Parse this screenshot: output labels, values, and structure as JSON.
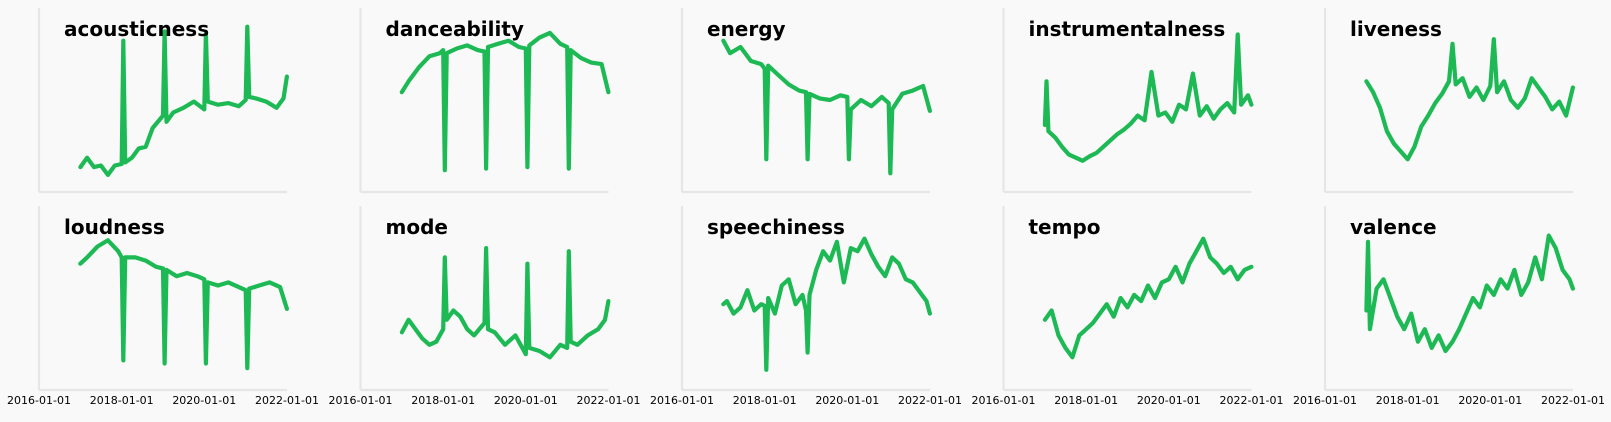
{
  "colors": {
    "line": "#1DB954",
    "background": "#f9f9f9",
    "axis": "#e6e6e6",
    "title": "#000000"
  },
  "chart_data": {
    "type": "line",
    "layout": "small-multiples 2x5",
    "x_ticks": [
      "2016-01-01",
      "2018-01-01",
      "2020-01-01",
      "2022-01-01"
    ],
    "xlim": [
      "2016-01-01",
      "2022-01-01"
    ],
    "grid": false,
    "legend": "none",
    "panels": [
      {
        "title": "acousticness",
        "x": [
          "2017-01-01",
          "2017-03-01",
          "2017-05-01",
          "2017-07-01",
          "2017-09-01",
          "2017-11-01",
          "2018-01-01",
          "2018-01-15",
          "2018-02-01",
          "2018-04-01",
          "2018-06-01",
          "2018-08-01",
          "2018-10-01",
          "2019-01-01",
          "2019-01-15",
          "2019-02-01",
          "2019-04-01",
          "2019-07-01",
          "2019-10-01",
          "2020-01-01",
          "2020-01-15",
          "2020-02-01",
          "2020-05-01",
          "2020-08-01",
          "2020-11-01",
          "2021-01-01",
          "2021-01-15",
          "2021-02-01",
          "2021-04-01",
          "2021-07-01",
          "2021-10-01",
          "2021-12-01",
          "2021-12-31"
        ],
        "y": [
          0.07,
          0.13,
          0.07,
          0.08,
          0.02,
          0.08,
          0.09,
          0.88,
          0.1,
          0.13,
          0.19,
          0.2,
          0.32,
          0.4,
          0.94,
          0.36,
          0.42,
          0.45,
          0.49,
          0.44,
          0.93,
          0.49,
          0.47,
          0.48,
          0.46,
          0.5,
          0.97,
          0.52,
          0.51,
          0.49,
          0.45,
          0.51,
          0.65
        ]
      },
      {
        "title": "danceability",
        "x": [
          "2016-12-31",
          "2017-03-01",
          "2017-06-01",
          "2017-09-01",
          "2017-12-01",
          "2018-01-01",
          "2018-01-15",
          "2018-02-01",
          "2018-05-01",
          "2018-08-01",
          "2018-11-01",
          "2019-01-01",
          "2019-01-15",
          "2019-02-01",
          "2019-05-01",
          "2019-08-01",
          "2019-11-01",
          "2020-01-01",
          "2020-01-15",
          "2020-02-01",
          "2020-05-01",
          "2020-08-01",
          "2020-11-01",
          "2021-01-01",
          "2021-01-15",
          "2021-02-01",
          "2021-05-01",
          "2021-08-01",
          "2021-11-01",
          "2021-12-31"
        ],
        "y": [
          0.55,
          0.62,
          0.71,
          0.78,
          0.8,
          0.82,
          0.05,
          0.8,
          0.83,
          0.85,
          0.82,
          0.81,
          0.06,
          0.84,
          0.86,
          0.88,
          0.84,
          0.83,
          0.07,
          0.85,
          0.9,
          0.93,
          0.86,
          0.84,
          0.06,
          0.82,
          0.77,
          0.74,
          0.73,
          0.55
        ]
      },
      {
        "title": "energy",
        "x": [
          "2017-01-01",
          "2017-03-01",
          "2017-06-01",
          "2017-09-01",
          "2017-12-01",
          "2018-01-01",
          "2018-01-15",
          "2018-02-01",
          "2018-05-01",
          "2018-08-01",
          "2018-11-01",
          "2019-01-01",
          "2019-01-15",
          "2019-02-01",
          "2019-05-01",
          "2019-08-01",
          "2019-11-01",
          "2020-01-01",
          "2020-01-15",
          "2020-02-01",
          "2020-05-01",
          "2020-08-01",
          "2020-11-01",
          "2021-01-01",
          "2021-01-15",
          "2021-02-01",
          "2021-05-01",
          "2021-08-01",
          "2021-11-01",
          "2021-12-31"
        ],
        "y": [
          0.88,
          0.8,
          0.84,
          0.75,
          0.73,
          0.7,
          0.12,
          0.72,
          0.66,
          0.6,
          0.56,
          0.55,
          0.12,
          0.54,
          0.51,
          0.5,
          0.53,
          0.52,
          0.12,
          0.44,
          0.5,
          0.46,
          0.52,
          0.48,
          0.03,
          0.44,
          0.54,
          0.56,
          0.59,
          0.43
        ]
      },
      {
        "title": "instrumentalness",
        "x": [
          "2017-01-01",
          "2017-01-15",
          "2017-02-01",
          "2017-04-01",
          "2017-06-01",
          "2017-08-01",
          "2017-10-01",
          "2017-12-01",
          "2018-02-01",
          "2018-04-01",
          "2018-06-01",
          "2018-08-01",
          "2018-10-01",
          "2018-12-01",
          "2019-02-01",
          "2019-04-01",
          "2019-06-01",
          "2019-08-01",
          "2019-10-01",
          "2019-12-01",
          "2020-02-01",
          "2020-04-01",
          "2020-06-01",
          "2020-08-01",
          "2020-10-01",
          "2020-12-01",
          "2021-02-01",
          "2021-04-01",
          "2021-06-01",
          "2021-08-01",
          "2021-09-01",
          "2021-10-01",
          "2021-12-01",
          "2021-12-31"
        ],
        "y": [
          0.34,
          0.62,
          0.3,
          0.26,
          0.2,
          0.15,
          0.13,
          0.11,
          0.14,
          0.16,
          0.2,
          0.24,
          0.28,
          0.31,
          0.35,
          0.4,
          0.37,
          0.68,
          0.4,
          0.42,
          0.36,
          0.47,
          0.44,
          0.67,
          0.4,
          0.46,
          0.38,
          0.44,
          0.48,
          0.42,
          0.92,
          0.47,
          0.53,
          0.47
        ]
      },
      {
        "title": "liveness",
        "x": [
          "2017-01-01",
          "2017-03-01",
          "2017-05-01",
          "2017-07-01",
          "2017-09-01",
          "2017-11-01",
          "2018-01-01",
          "2018-03-01",
          "2018-05-01",
          "2018-07-01",
          "2018-09-01",
          "2018-11-01",
          "2019-01-01",
          "2019-02-01",
          "2019-03-01",
          "2019-05-01",
          "2019-07-01",
          "2019-09-01",
          "2019-11-01",
          "2020-01-01",
          "2020-02-01",
          "2020-03-01",
          "2020-05-01",
          "2020-07-01",
          "2020-09-01",
          "2020-11-01",
          "2021-01-01",
          "2021-03-01",
          "2021-05-01",
          "2021-07-01",
          "2021-09-01",
          "2021-11-01",
          "2021-12-31"
        ],
        "y": [
          0.62,
          0.55,
          0.45,
          0.3,
          0.22,
          0.17,
          0.12,
          0.2,
          0.33,
          0.4,
          0.48,
          0.54,
          0.62,
          0.86,
          0.6,
          0.64,
          0.52,
          0.58,
          0.5,
          0.59,
          0.89,
          0.55,
          0.62,
          0.5,
          0.45,
          0.51,
          0.64,
          0.58,
          0.52,
          0.44,
          0.49,
          0.4,
          0.58
        ]
      },
      {
        "title": "loudness",
        "x": [
          "2016-12-31",
          "2017-03-01",
          "2017-06-01",
          "2017-09-01",
          "2017-12-01",
          "2018-01-01",
          "2018-01-15",
          "2018-02-01",
          "2018-05-01",
          "2018-08-01",
          "2018-11-01",
          "2019-01-01",
          "2019-01-15",
          "2019-02-01",
          "2019-05-01",
          "2019-08-01",
          "2019-11-01",
          "2020-01-01",
          "2020-01-15",
          "2020-02-01",
          "2020-05-01",
          "2020-08-01",
          "2020-11-01",
          "2021-01-01",
          "2021-01-15",
          "2021-02-01",
          "2021-05-01",
          "2021-08-01",
          "2021-11-01",
          "2021-12-31"
        ],
        "y": [
          0.72,
          0.76,
          0.83,
          0.87,
          0.8,
          0.76,
          0.1,
          0.76,
          0.76,
          0.74,
          0.7,
          0.69,
          0.08,
          0.68,
          0.64,
          0.66,
          0.64,
          0.62,
          0.08,
          0.6,
          0.58,
          0.6,
          0.57,
          0.55,
          0.05,
          0.56,
          0.58,
          0.6,
          0.57,
          0.43
        ]
      },
      {
        "title": "mode",
        "x": [
          "2017-01-01",
          "2017-03-01",
          "2017-05-01",
          "2017-07-01",
          "2017-09-01",
          "2017-11-01",
          "2018-01-01",
          "2018-01-15",
          "2018-02-01",
          "2018-04-01",
          "2018-06-01",
          "2018-08-01",
          "2018-10-01",
          "2019-01-01",
          "2019-01-15",
          "2019-02-01",
          "2019-04-01",
          "2019-07-01",
          "2019-10-01",
          "2020-01-01",
          "2020-01-15",
          "2020-02-01",
          "2020-05-01",
          "2020-08-01",
          "2020-11-01",
          "2021-01-01",
          "2021-01-15",
          "2021-02-01",
          "2021-04-01",
          "2021-07-01",
          "2021-10-01",
          "2021-12-01",
          "2021-12-31"
        ],
        "y": [
          0.28,
          0.36,
          0.3,
          0.24,
          0.2,
          0.22,
          0.3,
          0.76,
          0.36,
          0.42,
          0.38,
          0.3,
          0.26,
          0.34,
          0.82,
          0.3,
          0.28,
          0.2,
          0.26,
          0.14,
          0.72,
          0.18,
          0.16,
          0.12,
          0.2,
          0.18,
          0.8,
          0.22,
          0.2,
          0.26,
          0.3,
          0.36,
          0.48
        ]
      },
      {
        "title": "speechiness",
        "x": [
          "2016-12-31",
          "2017-02-01",
          "2017-04-01",
          "2017-06-01",
          "2017-08-01",
          "2017-10-01",
          "2017-12-01",
          "2018-01-01",
          "2018-01-15",
          "2018-02-01",
          "2018-04-01",
          "2018-06-01",
          "2018-08-01",
          "2018-10-01",
          "2018-12-01",
          "2019-01-01",
          "2019-01-15",
          "2019-02-01",
          "2019-04-01",
          "2019-06-01",
          "2019-08-01",
          "2019-10-01",
          "2019-12-01",
          "2020-02-01",
          "2020-04-01",
          "2020-06-01",
          "2020-08-01",
          "2020-10-01",
          "2020-12-01",
          "2021-02-01",
          "2021-04-01",
          "2021-06-01",
          "2021-08-01",
          "2021-10-01",
          "2021-12-01",
          "2021-12-31"
        ],
        "y": [
          0.46,
          0.48,
          0.4,
          0.44,
          0.55,
          0.42,
          0.46,
          0.45,
          0.04,
          0.5,
          0.4,
          0.58,
          0.62,
          0.46,
          0.52,
          0.42,
          0.15,
          0.52,
          0.68,
          0.8,
          0.74,
          0.86,
          0.6,
          0.82,
          0.8,
          0.88,
          0.78,
          0.7,
          0.64,
          0.76,
          0.72,
          0.62,
          0.6,
          0.54,
          0.48,
          0.4
        ]
      },
      {
        "title": "tempo",
        "x": [
          "2017-01-01",
          "2017-03-01",
          "2017-05-01",
          "2017-07-01",
          "2017-09-01",
          "2017-11-01",
          "2018-01-01",
          "2018-03-01",
          "2018-05-01",
          "2018-07-01",
          "2018-09-01",
          "2018-11-01",
          "2019-01-01",
          "2019-03-01",
          "2019-05-01",
          "2019-07-01",
          "2019-09-01",
          "2019-11-01",
          "2020-01-01",
          "2020-03-01",
          "2020-05-01",
          "2020-07-01",
          "2020-09-01",
          "2020-11-01",
          "2021-01-01",
          "2021-03-01",
          "2021-05-01",
          "2021-07-01",
          "2021-09-01",
          "2021-11-01",
          "2021-12-31"
        ],
        "y": [
          0.36,
          0.42,
          0.26,
          0.18,
          0.12,
          0.26,
          0.3,
          0.34,
          0.4,
          0.46,
          0.38,
          0.5,
          0.44,
          0.52,
          0.48,
          0.58,
          0.5,
          0.6,
          0.62,
          0.7,
          0.6,
          0.72,
          0.8,
          0.88,
          0.76,
          0.72,
          0.66,
          0.7,
          0.62,
          0.68,
          0.7
        ]
      },
      {
        "title": "valence",
        "x": [
          "2017-01-01",
          "2017-01-15",
          "2017-02-01",
          "2017-04-01",
          "2017-06-01",
          "2017-08-01",
          "2017-10-01",
          "2017-12-01",
          "2018-02-01",
          "2018-04-01",
          "2018-06-01",
          "2018-08-01",
          "2018-10-01",
          "2018-12-01",
          "2019-02-01",
          "2019-04-01",
          "2019-06-01",
          "2019-08-01",
          "2019-10-01",
          "2019-12-01",
          "2020-02-01",
          "2020-04-01",
          "2020-06-01",
          "2020-08-01",
          "2020-10-01",
          "2020-12-01",
          "2021-02-01",
          "2021-04-01",
          "2021-06-01",
          "2021-08-01",
          "2021-10-01",
          "2021-12-01",
          "2021-12-31"
        ],
        "y": [
          0.42,
          0.86,
          0.3,
          0.56,
          0.62,
          0.5,
          0.38,
          0.3,
          0.4,
          0.22,
          0.3,
          0.18,
          0.26,
          0.16,
          0.22,
          0.3,
          0.4,
          0.5,
          0.44,
          0.58,
          0.52,
          0.62,
          0.56,
          0.68,
          0.52,
          0.6,
          0.76,
          0.62,
          0.9,
          0.82,
          0.68,
          0.62,
          0.56
        ]
      }
    ]
  }
}
